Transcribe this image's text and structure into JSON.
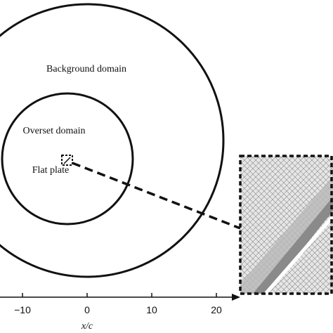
{
  "labels": {
    "background": "Background domain",
    "overset": "Overset domain",
    "plate": "Flat plate"
  },
  "axis": {
    "label": "x/c",
    "ticks": [
      {
        "value": -10,
        "label": "−10"
      },
      0,
      10,
      20
    ]
  }
}
